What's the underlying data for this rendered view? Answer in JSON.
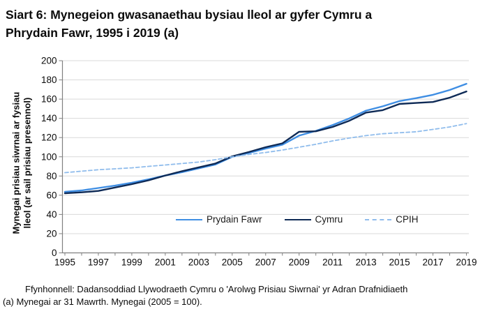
{
  "title": "Siart 6: Mynegeion gwasanaethau bysiau lleol ar gyfer Cymru a Phrydain Fawr, 1995 i 2019 (a)",
  "y_axis_label_line1": "Mynegai prisiau siwrnai ar fysiau",
  "y_axis_label_line2": "lleol (ar sail prisiau presennol)",
  "footer": {
    "source_line": "Ffynhonnell: Dadansoddiad Llywodraeth Cymru o 'Arolwg Prisiau Siwrnai' yr Adran Drafnidiaeth",
    "note_line": "(a) Mynegai ar 31 Mawrth. Mynegai (2005 = 100)."
  },
  "colors": {
    "great_britain_line": "#3F8EE3",
    "wales_line": "#0E2A56",
    "cpih_line": "#8FBCEC",
    "gridline": "#D9D9D9",
    "axis": "#808080",
    "text": "#0b0b0b"
  },
  "chart_data": {
    "type": "line",
    "title": "Siart 6: Mynegeion gwasanaethau bysiau lleol ar gyfer Cymru a Phrydain Fawr, 1995 i 2019 (a)",
    "xlabel": "",
    "ylabel": "Mynegai prisiau siwrnai ar fysiau lleol (ar sail prisiau presennol)",
    "ylim": [
      0,
      200
    ],
    "y_tick_step": 20,
    "grid": "horizontal",
    "legend_position": "bottom-inside",
    "x": [
      1995,
      1996,
      1997,
      1998,
      1999,
      2000,
      2001,
      2002,
      2003,
      2004,
      2005,
      2006,
      2007,
      2008,
      2009,
      2010,
      2011,
      2012,
      2013,
      2014,
      2015,
      2016,
      2017,
      2018,
      2019
    ],
    "x_tick_labels": [
      "1995",
      "1997",
      "1999",
      "2001",
      "2003",
      "2005",
      "2007",
      "2009",
      "2011",
      "2013",
      "2015",
      "2017",
      "2019"
    ],
    "series": [
      {
        "name": "Prydain Fawr",
        "style": "solid",
        "color": "#3F8EE3",
        "values": [
          63.5,
          65,
          67.5,
          70,
          73,
          76.5,
          80.5,
          84,
          88,
          92,
          100,
          104,
          108.5,
          112.5,
          122,
          127,
          133,
          140,
          148,
          152.5,
          158,
          161,
          164.5,
          169.5,
          176
        ]
      },
      {
        "name": "Cymru",
        "style": "solid",
        "color": "#0E2A56",
        "values": [
          62,
          63,
          64.5,
          68,
          71.5,
          75.5,
          80.5,
          85,
          89,
          93,
          100.5,
          105,
          110,
          114,
          126,
          126.5,
          131,
          137.5,
          146,
          148.5,
          155,
          156,
          157,
          161.5,
          168
        ]
      },
      {
        "name": "CPIH",
        "style": "dashed",
        "color": "#8FBCEC",
        "values": [
          83.5,
          85,
          86.5,
          87.5,
          88.5,
          90,
          91.5,
          93,
          94.5,
          97,
          100,
          102.5,
          104.5,
          107,
          110,
          113,
          116.5,
          119.5,
          122,
          124,
          125,
          126,
          128.5,
          131,
          134.5
        ]
      }
    ]
  }
}
